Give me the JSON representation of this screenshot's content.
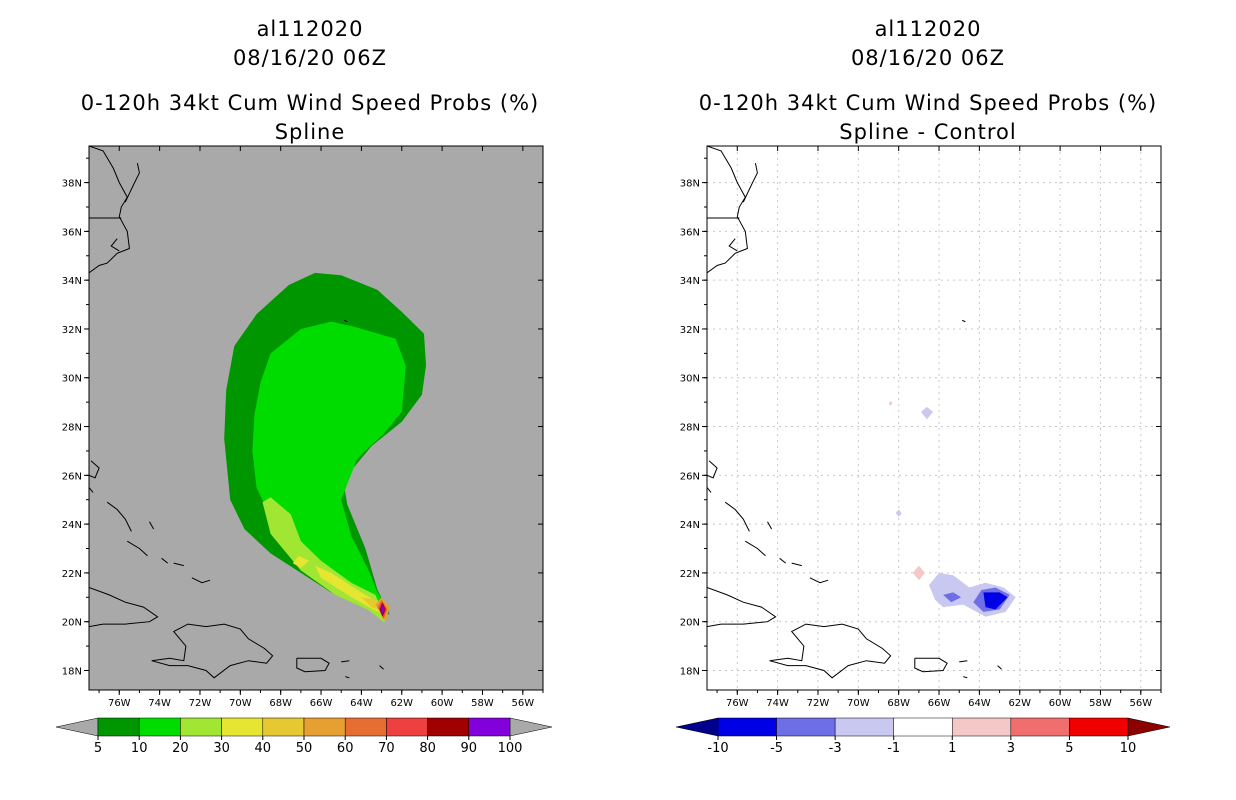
{
  "storm_id": "al112020",
  "datetime": "08/16/20 06Z",
  "product": "0-120h 34kt Cum Wind Speed Probs (%)",
  "colors": {
    "ocean_left": "#a9a9a9",
    "ocean_right": "#ffffff",
    "coast": "#000000",
    "grid": "#c8c8c8"
  },
  "chart_data": [
    {
      "type": "heatmap",
      "title": "Spline",
      "x_tick_labels": [
        "76W",
        "74W",
        "72W",
        "70W",
        "68W",
        "66W",
        "64W",
        "62W",
        "60W",
        "58W",
        "56W"
      ],
      "y_tick_labels": [
        "18N",
        "20N",
        "22N",
        "24N",
        "26N",
        "28N",
        "30N",
        "32N",
        "34N",
        "36N",
        "38N"
      ],
      "xlim": [
        -77.5,
        -55.0
      ],
      "ylim": [
        17.2,
        39.5
      ],
      "colorbar": {
        "labels": [
          "5",
          "10",
          "20",
          "30",
          "40",
          "50",
          "60",
          "70",
          "80",
          "90",
          "100"
        ],
        "colors": [
          "#009600",
          "#00dc00",
          "#a0e632",
          "#e6e632",
          "#e6c832",
          "#e6a032",
          "#e66e32",
          "#ee4040",
          "#a00000",
          "#8200dc"
        ],
        "end_colors": [
          "#a9a9a9",
          "#a9a9a9"
        ]
      },
      "contours": [
        {
          "level": "5-10%",
          "color": "#009600",
          "points": [
            [
              -62.6,
              20.3
            ],
            [
              -63.2,
              21.3
            ],
            [
              -63.8,
              23.0
            ],
            [
              -64.7,
              24.8
            ],
            [
              -64.9,
              25.8
            ],
            [
              -63.5,
              27.2
            ],
            [
              -62.0,
              28.2
            ],
            [
              -61.0,
              29.3
            ],
            [
              -60.8,
              30.5
            ],
            [
              -60.9,
              31.8
            ],
            [
              -62.0,
              32.7
            ],
            [
              -63.2,
              33.6
            ],
            [
              -65.0,
              34.2
            ],
            [
              -66.3,
              34.3
            ],
            [
              -67.6,
              33.8
            ],
            [
              -69.2,
              32.6
            ],
            [
              -70.3,
              31.3
            ],
            [
              -70.7,
              29.5
            ],
            [
              -70.8,
              27.5
            ],
            [
              -70.5,
              25.0
            ],
            [
              -69.8,
              23.8
            ],
            [
              -68.5,
              22.8
            ],
            [
              -67.0,
              22.0
            ],
            [
              -65.5,
              21.2
            ],
            [
              -64.0,
              20.7
            ],
            [
              -63.3,
              20.3
            ]
          ]
        },
        {
          "level": "10-20%",
          "color": "#00dc00",
          "points": [
            [
              -62.6,
              20.4
            ],
            [
              -63.2,
              21.2
            ],
            [
              -63.7,
              22.2
            ],
            [
              -64.5,
              23.5
            ],
            [
              -65.0,
              25.0
            ],
            [
              -64.2,
              26.7
            ],
            [
              -62.9,
              27.7
            ],
            [
              -62.0,
              28.6
            ],
            [
              -61.8,
              30.5
            ],
            [
              -62.3,
              31.6
            ],
            [
              -64.4,
              32.1
            ],
            [
              -65.5,
              32.3
            ],
            [
              -67.0,
              32.0
            ],
            [
              -68.5,
              31.0
            ],
            [
              -69.0,
              29.8
            ],
            [
              -69.3,
              28.5
            ],
            [
              -69.4,
              27.0
            ],
            [
              -69.2,
              25.5
            ],
            [
              -68.5,
              24.3
            ],
            [
              -67.0,
              23.0
            ],
            [
              -65.5,
              22.0
            ],
            [
              -64.0,
              21.0
            ],
            [
              -62.9,
              20.4
            ]
          ]
        },
        {
          "level": "20-30%",
          "color": "#a0e632",
          "points": [
            [
              -62.8,
              20.0
            ],
            [
              -63.3,
              21.1
            ],
            [
              -64.5,
              21.6
            ],
            [
              -66.0,
              22.5
            ],
            [
              -67.0,
              23.3
            ],
            [
              -67.5,
              24.4
            ],
            [
              -68.5,
              25.1
            ],
            [
              -68.9,
              24.9
            ],
            [
              -68.5,
              23.6
            ],
            [
              -67.0,
              22.1
            ],
            [
              -65.3,
              21.1
            ],
            [
              -63.7,
              20.5
            ],
            [
              -62.9,
              20.0
            ]
          ]
        },
        {
          "level": "30-40%",
          "color": "#e6e632",
          "points": [
            [
              -62.9,
              20.3
            ],
            [
              -63.2,
              20.8
            ],
            [
              -64.0,
              21.2
            ],
            [
              -65.5,
              22.0
            ],
            [
              -66.3,
              22.3
            ],
            [
              -66.0,
              21.8
            ],
            [
              -64.5,
              21.0
            ],
            [
              -63.4,
              20.5
            ]
          ]
        },
        {
          "level": "30-40% (isolated)",
          "color": "#e6e632",
          "points": [
            [
              -67.1,
              22.7
            ],
            [
              -66.6,
              22.5
            ],
            [
              -67.0,
              22.2
            ],
            [
              -67.4,
              22.4
            ]
          ]
        },
        {
          "level": "40-50%",
          "color": "#e6c832",
          "points": [
            [
              -62.9,
              20.4
            ],
            [
              -63.2,
              20.9
            ],
            [
              -64.0,
              21.0
            ],
            [
              -63.5,
              20.6
            ]
          ]
        },
        {
          "level": "50-60%",
          "color": "#e6a032",
          "points": [
            [
              -62.8,
              20.0
            ],
            [
              -63.3,
              20.7
            ],
            [
              -63.0,
              21.0
            ],
            [
              -62.6,
              20.6
            ]
          ]
        },
        {
          "level": "60-70%",
          "color": "#e66e32",
          "points": [
            [
              -62.9,
              20.1
            ],
            [
              -63.2,
              20.6
            ],
            [
              -63.0,
              20.9
            ],
            [
              -62.7,
              20.5
            ]
          ]
        },
        {
          "level": "70-80%",
          "color": "#ee4040",
          "points": [
            [
              -62.9,
              20.15
            ],
            [
              -63.15,
              20.55
            ],
            [
              -63.0,
              20.85
            ],
            [
              -62.75,
              20.5
            ]
          ]
        },
        {
          "level": "80-90%",
          "color": "#a00000",
          "points": [
            [
              -62.95,
              20.2
            ],
            [
              -63.1,
              20.5
            ],
            [
              -62.95,
              20.8
            ],
            [
              -62.8,
              20.5
            ]
          ]
        },
        {
          "level": "90-100%",
          "color": "#8200dc",
          "points": [
            [
              -62.95,
              20.3
            ],
            [
              -63.05,
              20.5
            ],
            [
              -62.95,
              20.7
            ],
            [
              -62.85,
              20.5
            ]
          ]
        }
      ]
    },
    {
      "type": "heatmap",
      "title": "Spline - Control",
      "x_tick_labels": [
        "76W",
        "74W",
        "72W",
        "70W",
        "68W",
        "66W",
        "64W",
        "62W",
        "60W",
        "58W",
        "56W"
      ],
      "y_tick_labels": [
        "18N",
        "20N",
        "22N",
        "24N",
        "26N",
        "28N",
        "30N",
        "32N",
        "34N",
        "36N",
        "38N"
      ],
      "xlim": [
        -77.5,
        -55.0
      ],
      "ylim": [
        17.2,
        39.5
      ],
      "colorbar": {
        "labels": [
          "-10",
          "-5",
          "-3",
          "-1",
          "1",
          "3",
          "5",
          "10"
        ],
        "colors": [
          "#0000e6",
          "#6e6ee6",
          "#c8c8f0",
          "#ffffff",
          "#f5c8c8",
          "#f06e6e",
          "#f00000"
        ],
        "end_colors": [
          "#00008c",
          "#8c0000"
        ]
      },
      "contours": [
        {
          "level": "-3 to -1",
          "color": "#c8c8f0",
          "points": [
            [
              -66.5,
              21.5
            ],
            [
              -66.0,
              22.0
            ],
            [
              -65.3,
              21.9
            ],
            [
              -64.5,
              21.4
            ],
            [
              -63.7,
              21.6
            ],
            [
              -62.8,
              21.4
            ],
            [
              -62.2,
              21.0
            ],
            [
              -62.7,
              20.4
            ],
            [
              -63.7,
              20.2
            ],
            [
              -64.8,
              20.7
            ],
            [
              -65.8,
              20.6
            ],
            [
              -66.2,
              20.9
            ]
          ]
        },
        {
          "level": "-5 to -3",
          "color": "#6e6ee6",
          "points": [
            [
              -63.9,
              21.3
            ],
            [
              -63.2,
              21.4
            ],
            [
              -62.5,
              21.1
            ],
            [
              -63.0,
              20.5
            ],
            [
              -63.8,
              20.4
            ],
            [
              -64.3,
              20.8
            ]
          ]
        },
        {
          "level": "-5 to -3 (west)",
          "color": "#6e6ee6",
          "points": [
            [
              -65.8,
              21.1
            ],
            [
              -65.3,
              21.2
            ],
            [
              -64.9,
              21.0
            ],
            [
              -65.4,
              20.8
            ]
          ]
        },
        {
          "level": "-10 to -5",
          "color": "#0000e6",
          "points": [
            [
              -63.8,
              21.2
            ],
            [
              -63.0,
              21.2
            ],
            [
              -62.6,
              21.0
            ],
            [
              -63.2,
              20.5
            ],
            [
              -63.7,
              20.6
            ]
          ]
        },
        {
          "level": "-3 to -1 (28N)",
          "color": "#c8c8f0",
          "points": [
            [
              -66.6,
              28.8
            ],
            [
              -66.3,
              28.6
            ],
            [
              -66.6,
              28.3
            ],
            [
              -66.9,
              28.6
            ]
          ]
        },
        {
          "level": "-3 to -1 (24N)",
          "color": "#c8c8f0",
          "points": [
            [
              -68.0,
              24.6
            ],
            [
              -67.85,
              24.45
            ],
            [
              -68.0,
              24.3
            ],
            [
              -68.15,
              24.45
            ]
          ]
        },
        {
          "level": "1 to 3",
          "color": "#f5c8c8",
          "points": [
            [
              -67.0,
              22.3
            ],
            [
              -66.7,
              22.0
            ],
            [
              -67.0,
              21.7
            ],
            [
              -67.3,
              22.0
            ]
          ]
        },
        {
          "level": "1 to 3 (29N)",
          "color": "#f5c8c8",
          "points": [
            [
              -68.4,
              29.05
            ],
            [
              -68.3,
              28.95
            ],
            [
              -68.4,
              28.85
            ],
            [
              -68.5,
              28.95
            ]
          ]
        }
      ]
    }
  ]
}
